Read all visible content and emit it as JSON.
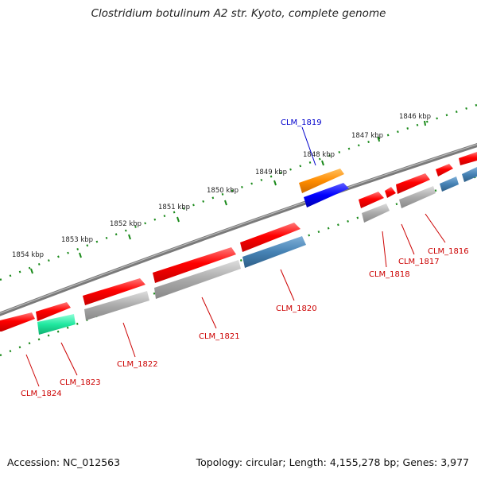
{
  "title": "Clostridium botulinum A2 str. Kyoto, complete genome",
  "footer": {
    "accession": "Accession: NC_012563",
    "summary": "Topology: circular; Length: 4,155,278 bp; Genes: 3,977"
  },
  "scale_labels": [
    "1846 kbp",
    "1847 kbp",
    "1848 kbp",
    "1849 kbp",
    "1850 kbp",
    "1851 kbp",
    "1852 kbp",
    "1853 kbp",
    "1854 kbp"
  ],
  "gene_labels": [
    "CLM_1819",
    "CLM_1816",
    "CLM_1817",
    "CLM_1818",
    "CLM_1820",
    "CLM_1821",
    "CLM_1822",
    "CLM_1823",
    "CLM_1824"
  ],
  "colors": {
    "cds": "#ff0000",
    "gene": "#aaaaaa",
    "blue_feature": "#4682b4",
    "teal_feature": "#20e8a0",
    "highlight_cds": "#0000ff",
    "highlight_gene": "#ff8c00",
    "label": "#cc0000",
    "highlight_label": "#0000cc",
    "tick": "#1a8a1a",
    "backbone": "#888888"
  }
}
